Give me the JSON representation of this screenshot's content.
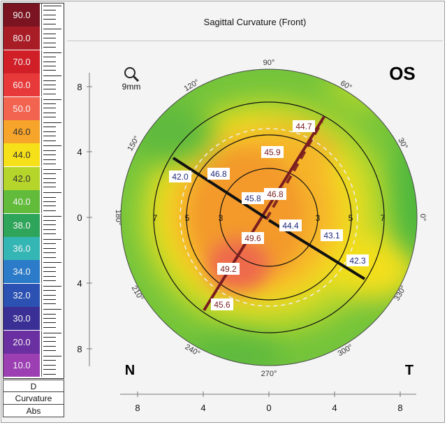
{
  "title": "Sagittal Curvature (Front)",
  "eye": "OS",
  "zone_label": "9mm",
  "nasal_label": "N",
  "temporal_label": "T",
  "scale": {
    "unit": "D",
    "mode": "Curvature",
    "type": "Abs",
    "steps": [
      {
        "label": "90.0",
        "color": "#7a1420"
      },
      {
        "label": "80.0",
        "color": "#a81c25"
      },
      {
        "label": "70.0",
        "color": "#d01f27"
      },
      {
        "label": "60.0",
        "color": "#e8393a"
      },
      {
        "label": "50.0",
        "color": "#f36450"
      },
      {
        "label": "46.0",
        "color": "#f7a42a"
      },
      {
        "label": "44.0",
        "color": "#f6e019"
      },
      {
        "label": "42.0",
        "color": "#b5d52a"
      },
      {
        "label": "40.0",
        "color": "#62bb3b"
      },
      {
        "label": "38.0",
        "color": "#2ea55a"
      },
      {
        "label": "36.0",
        "color": "#33b6b4"
      },
      {
        "label": "34.0",
        "color": "#2b7bc8"
      },
      {
        "label": "32.0",
        "color": "#2b51b2"
      },
      {
        "label": "30.0",
        "color": "#3a2f95"
      },
      {
        "label": "20.0",
        "color": "#6a2fa0"
      },
      {
        "label": "10.0",
        "color": "#9c3fb3"
      }
    ]
  },
  "y_axis_ticks": [
    "8",
    "4",
    "0",
    "4",
    "8"
  ],
  "x_axis_ticks": [
    "8",
    "4",
    "0",
    "4",
    "8"
  ],
  "degree_labels": [
    "90°",
    "60°",
    "30°",
    "0°",
    "330°",
    "300°",
    "270°",
    "240°",
    "210°",
    "180°",
    "150°",
    "120°"
  ],
  "ring_labels": [
    "7",
    "5",
    "3",
    "3",
    "5",
    "7"
  ],
  "meridians": [
    {
      "axis": "steep",
      "values": [
        "44.7",
        "45.9",
        "46.8",
        "49.6",
        "49.2",
        "45.6"
      ]
    },
    {
      "axis": "nasal",
      "values": [
        "42.0",
        "46.8",
        "45.8"
      ]
    },
    {
      "axis": "temporal",
      "values": [
        "44.4",
        "43.1",
        "42.3"
      ]
    }
  ]
}
